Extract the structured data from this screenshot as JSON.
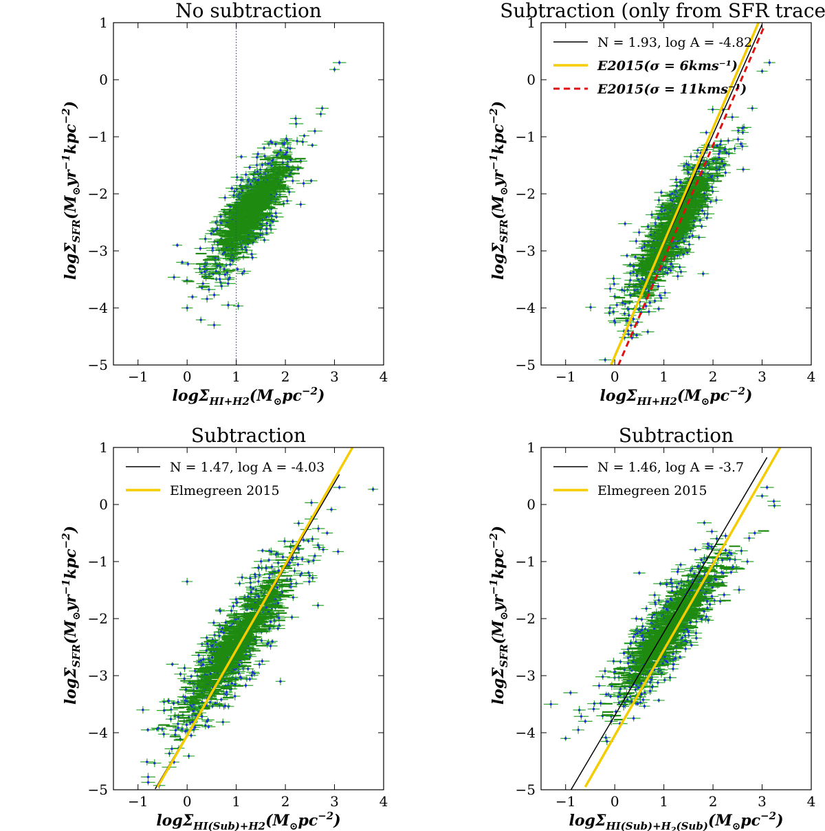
{
  "figure": {
    "cloud_colors": {
      "point": "#1a2fd0",
      "errorbar": "#2aa52a",
      "fill": "#1f8a10"
    }
  },
  "chart_data": [
    {
      "id": "p1",
      "type": "scatter",
      "title": "No subtraction",
      "xlabel": "logΣ_{HI+H2}(M_⊙pc^{-2})",
      "ylabel": "logΣ_{SFR}(M_⊙yr^{-1}kpc^{-2})",
      "xlim": [
        -1.5,
        4
      ],
      "ylim": [
        -5,
        1
      ],
      "xticks": [
        -1,
        0,
        1,
        2,
        3,
        4
      ],
      "yticks": [
        -5,
        -4,
        -3,
        -2,
        -1,
        0,
        1
      ],
      "tick_labels_x": [
        "−1",
        "0",
        "1",
        "2",
        "3",
        "4"
      ],
      "tick_labels_y": [
        "−5",
        "−4",
        "−3",
        "−2",
        "−1",
        "0",
        "1"
      ],
      "cloud": {
        "slope": 1.0,
        "intercept": -3.6,
        "x_center": 1.3,
        "x_spread": 0.45,
        "y_scatter": 0.35,
        "n": 650
      },
      "outliers": [
        [
          3.1,
          0.3
        ],
        [
          3.0,
          0.18
        ],
        [
          2.75,
          -0.5
        ],
        [
          2.6,
          -0.9
        ],
        [
          0.55,
          -4.3
        ],
        [
          0.0,
          -4.0
        ],
        [
          -0.2,
          -2.9
        ],
        [
          -0.1,
          -3.2
        ]
      ],
      "vline": {
        "x": 1.0,
        "color": "#3a3ae0",
        "style": "dotted"
      },
      "lines": [],
      "legend": []
    },
    {
      "id": "p2",
      "type": "scatter",
      "title": "Subtraction (only from SFR tracers)",
      "xlabel": "logΣ_{HI+H2}(M_⊙pc^{-2})",
      "ylabel": "logΣ_{SFR}(M_⊙yr^{-1}kpc^{-2})",
      "xlim": [
        -1.5,
        4
      ],
      "ylim": [
        -5,
        1
      ],
      "xticks": [
        -1,
        0,
        1,
        2,
        3,
        4
      ],
      "yticks": [
        -5,
        -4,
        -3,
        -2,
        -1,
        0,
        1
      ],
      "tick_labels_x": [
        "−1",
        "0",
        "1",
        "2",
        "3",
        "4"
      ],
      "tick_labels_y": [
        "−5",
        "−4",
        "−3",
        "−2",
        "−1",
        "0",
        "1"
      ],
      "cloud": {
        "slope": 1.3,
        "intercept": -4.15,
        "x_center": 1.2,
        "x_spread": 0.5,
        "y_scatter": 0.38,
        "n": 650
      },
      "outliers": [
        [
          3.15,
          0.3
        ],
        [
          3.0,
          0.15
        ],
        [
          2.8,
          -0.5
        ],
        [
          2.6,
          -0.85
        ],
        [
          0.0,
          -3.8
        ],
        [
          -0.1,
          -4.0
        ],
        [
          1.8,
          -3.4
        ],
        [
          0.2,
          -4.1
        ]
      ],
      "lines": [
        {
          "label": "N = 1.93, log A = -4.82",
          "slope": 1.93,
          "intercept": -4.82,
          "x_range": [
            0.0,
            3.0
          ],
          "color": "#000000",
          "width": 1.5,
          "dash": ""
        },
        {
          "label": "E2015(σ = 6kms⁻¹)",
          "slope": 2.0,
          "intercept": -4.85,
          "x_range": [
            -0.08,
            2.95
          ],
          "color": "#f5cc00",
          "width": 3.5,
          "dash": ""
        },
        {
          "label": "E2015(σ = 11kms⁻¹)",
          "slope": 2.0,
          "intercept": -5.15,
          "x_range": [
            0.07,
            3.05
          ],
          "color": "#e01010",
          "width": 3,
          "dash": "9,6"
        }
      ],
      "legend": [
        {
          "label": "N = 1.93, log A = -4.82",
          "color": "#000000",
          "width": 1.5,
          "dash": "",
          "math": false
        },
        {
          "label": "E2015(σ = 6kms⁻¹)",
          "color": "#f5cc00",
          "width": 3.5,
          "dash": "",
          "math": true
        },
        {
          "label": "E2015(σ = 11kms⁻¹)",
          "color": "#e01010",
          "width": 3,
          "dash": "9,6",
          "math": true
        }
      ]
    },
    {
      "id": "p3",
      "type": "scatter",
      "title": "Subtraction",
      "xlabel": "logΣ_{HI(Sub)+H2}(M_⊙pc^{-2})",
      "ylabel": "logΣ_{SFR}(M_⊙yr^{-1}kpc^{-2})",
      "xlim": [
        -1.5,
        4
      ],
      "ylim": [
        -5,
        1
      ],
      "xticks": [
        -1,
        0,
        1,
        2,
        3,
        4
      ],
      "yticks": [
        -5,
        -4,
        -3,
        -2,
        -1,
        0,
        1
      ],
      "tick_labels_x": [
        "−1",
        "0",
        "1",
        "2",
        "3",
        "4"
      ],
      "tick_labels_y": [
        "−5",
        "−4",
        "−3",
        "−2",
        "−1",
        "0",
        "1"
      ],
      "cloud": {
        "slope": 1.1,
        "intercept": -3.55,
        "x_center": 1.0,
        "x_spread": 0.65,
        "y_scatter": 0.38,
        "n": 700
      },
      "outliers": [
        [
          3.1,
          0.3
        ],
        [
          2.85,
          -0.5
        ],
        [
          2.6,
          -0.9
        ],
        [
          -0.9,
          -3.6
        ],
        [
          -0.8,
          -3.95
        ],
        [
          -0.3,
          -2.8
        ],
        [
          0.0,
          -1.35
        ],
        [
          1.9,
          -3.1
        ]
      ],
      "lines": [
        {
          "label": "N = 1.47, log A = -4.03",
          "slope": 1.47,
          "intercept": -4.03,
          "x_range": [
            -0.65,
            3.1
          ],
          "color": "#000000",
          "width": 1.5,
          "dash": ""
        },
        {
          "label": "Elmegreen 2015",
          "slope": 1.5,
          "intercept": -4.05,
          "x_range": [
            -0.6,
            3.4
          ],
          "color": "#f5cc00",
          "width": 3.5,
          "dash": ""
        }
      ],
      "legend": [
        {
          "label": "N = 1.47, log A = -4.03",
          "color": "#000000",
          "width": 1.5,
          "dash": "",
          "math": false
        },
        {
          "label": "Elmegreen 2015",
          "color": "#f5cc00",
          "width": 3.5,
          "dash": "",
          "math": false
        }
      ]
    },
    {
      "id": "p4",
      "type": "scatter",
      "title": "Subtraction",
      "xlabel": "logΣ_{HI(Sub)+H₂(Sub)}(M_⊙pc^{-2})",
      "ylabel": "logΣ_{SFR}(M_⊙yr^{-1}kpc^{-2})",
      "xlim": [
        -1.5,
        4
      ],
      "ylim": [
        -5,
        1
      ],
      "xticks": [
        -1,
        0,
        1,
        2,
        3,
        4
      ],
      "yticks": [
        -5,
        -4,
        -3,
        -2,
        -1,
        0,
        1
      ],
      "tick_labels_x": [
        "−1",
        "0",
        "1",
        "2",
        "3",
        "4"
      ],
      "tick_labels_y": [
        "−5",
        "−4",
        "−3",
        "−2",
        "−1",
        "0",
        "1"
      ],
      "cloud": {
        "slope": 1.0,
        "intercept": -3.3,
        "x_center": 1.1,
        "x_spread": 0.6,
        "y_scatter": 0.35,
        "n": 680
      },
      "outliers": [
        [
          3.1,
          0.3
        ],
        [
          3.0,
          0.15
        ],
        [
          2.85,
          -0.5
        ],
        [
          2.7,
          -1.0
        ],
        [
          -1.3,
          -3.5
        ],
        [
          -1.0,
          -4.1
        ],
        [
          -0.6,
          -3.8
        ],
        [
          -0.9,
          -3.3
        ],
        [
          0.5,
          -1.2
        ]
      ],
      "lines": [
        {
          "label": "N = 1.46, log A = -3.7",
          "slope": 1.46,
          "intercept": -3.7,
          "x_range": [
            -0.9,
            3.1
          ],
          "color": "#000000",
          "width": 1.5,
          "dash": ""
        },
        {
          "label": "Elmegreen 2015",
          "slope": 1.5,
          "intercept": -4.05,
          "x_range": [
            -0.6,
            3.4
          ],
          "color": "#f5cc00",
          "width": 3.5,
          "dash": ""
        }
      ],
      "legend": [
        {
          "label": "N = 1.46, log A = -3.7",
          "color": "#000000",
          "width": 1.5,
          "dash": "",
          "math": false
        },
        {
          "label": "Elmegreen 2015",
          "color": "#f5cc00",
          "width": 3.5,
          "dash": "",
          "math": false
        }
      ]
    }
  ]
}
